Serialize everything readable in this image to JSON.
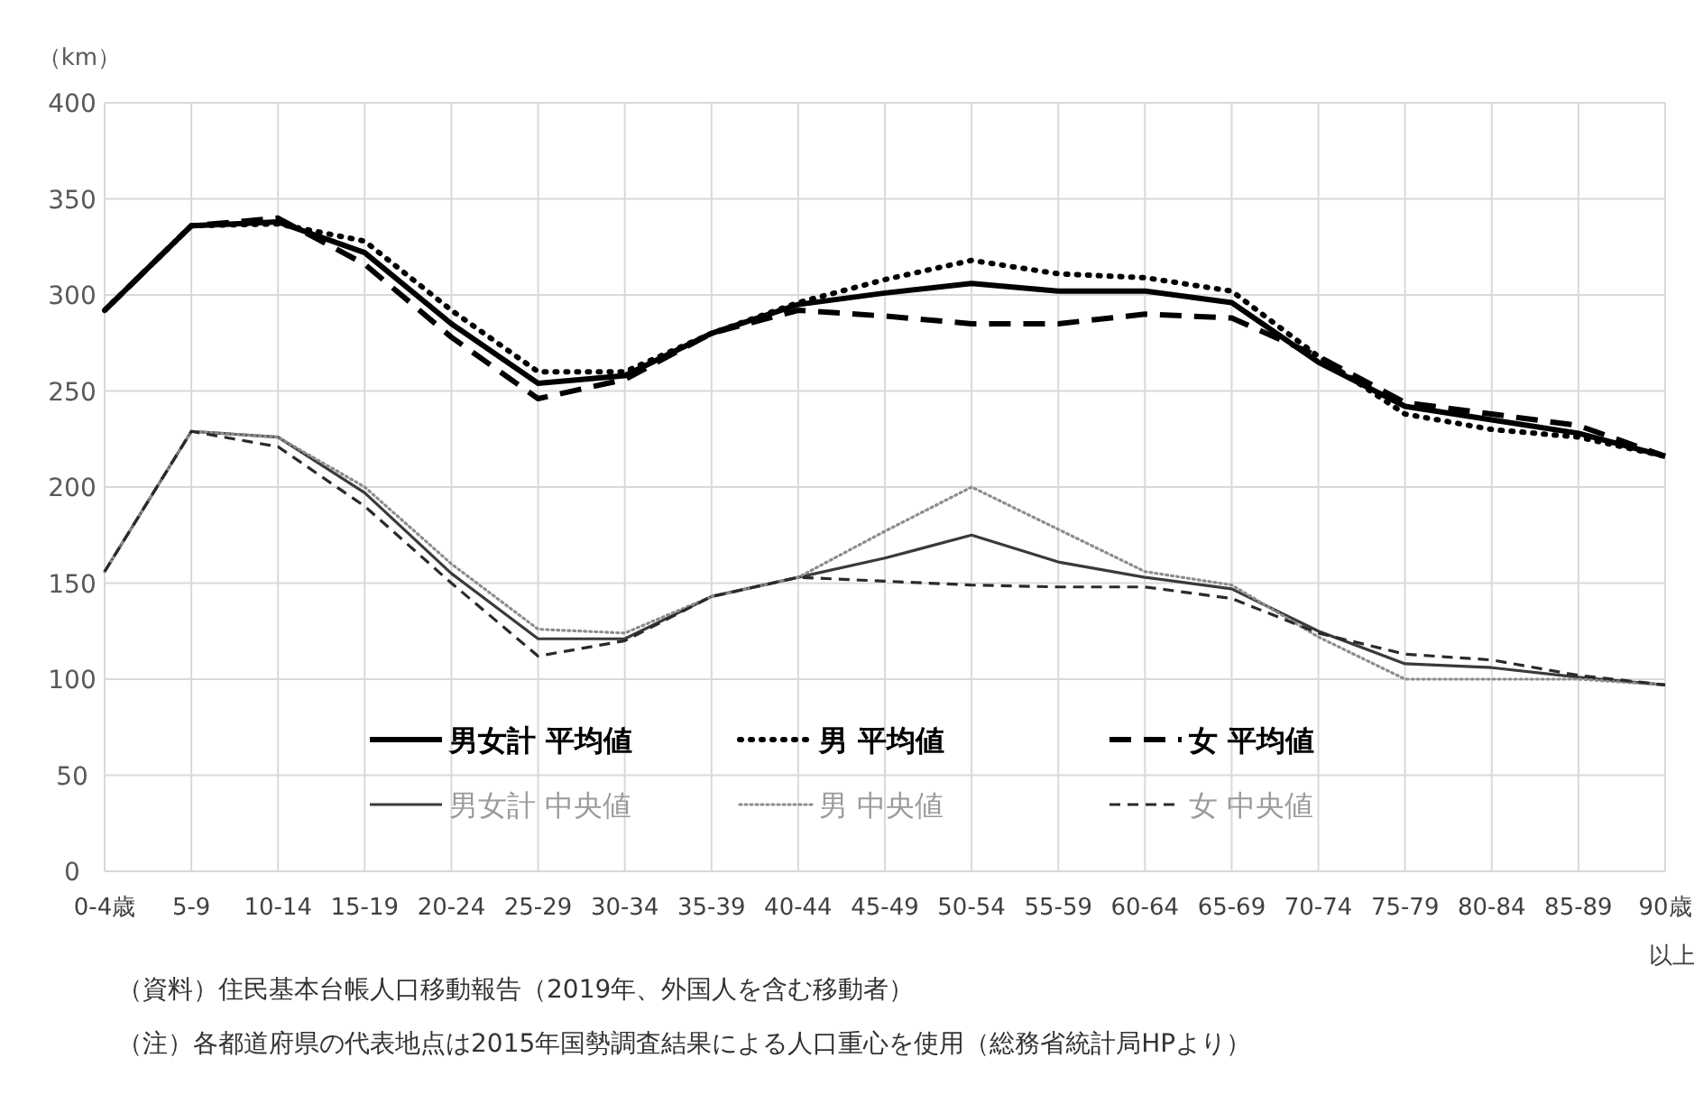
{
  "chart_data": {
    "type": "line",
    "ylabel": "（km）",
    "categories": [
      "0-4歳",
      "5-9",
      "10-14",
      "15-19",
      "20-24",
      "25-29",
      "30-34",
      "35-39",
      "40-44",
      "45-49",
      "50-54",
      "55-59",
      "60-64",
      "65-69",
      "70-74",
      "75-79",
      "80-84",
      "85-89",
      "90歳以上"
    ],
    "series": [
      {
        "name": "男女計 平均値",
        "color": "#000000",
        "line_style": "solid",
        "values": [
          292,
          336,
          338,
          322,
          285,
          254,
          258,
          280,
          295,
          301,
          306,
          302,
          302,
          296,
          265,
          242,
          235,
          228,
          216
        ]
      },
      {
        "name": "男 平均値",
        "color": "#000000",
        "line_style": "dotted",
        "values": [
          292,
          336,
          337,
          328,
          292,
          260,
          260,
          280,
          296,
          308,
          318,
          311,
          309,
          302,
          268,
          238,
          230,
          226,
          216
        ]
      },
      {
        "name": "女 平均値",
        "color": "#000000",
        "line_style": "dashed",
        "values": [
          292,
          336,
          340,
          316,
          278,
          246,
          256,
          280,
          292,
          289,
          285,
          285,
          290,
          288,
          268,
          244,
          238,
          232,
          216
        ]
      },
      {
        "name": "男女計 中央値",
        "color": "#3a3a3a",
        "line_style": "solid",
        "values": [
          156,
          229,
          226,
          197,
          155,
          121,
          121,
          143,
          153,
          163,
          175,
          161,
          153,
          147,
          125,
          108,
          106,
          101,
          97
        ]
      },
      {
        "name": "男 中央値",
        "color": "#8c8c8c",
        "line_style": "dotted",
        "values": [
          156,
          229,
          226,
          200,
          160,
          126,
          124,
          143,
          153,
          177,
          200,
          178,
          156,
          149,
          122,
          100,
          100,
          100,
          97
        ]
      },
      {
        "name": "女 中央値",
        "color": "#2a2a2a",
        "line_style": "dashed",
        "values": [
          156,
          229,
          221,
          190,
          150,
          112,
          120,
          143,
          153,
          151,
          149,
          148,
          148,
          142,
          124,
          113,
          110,
          102,
          97
        ]
      }
    ],
    "ylim": [
      0,
      400
    ],
    "yticks": [
      0,
      50,
      100,
      150,
      200,
      250,
      300,
      350,
      400
    ],
    "grid": true,
    "legend": "bottom",
    "annotations": [
      "（資料）住民基本台帳人口移動報告（2019年、外国人を含む移動者）",
      "（注）各都道府県の代表地点は2015年国勢調査結果による人口重心を使用（総務省統計局HPより）"
    ]
  }
}
